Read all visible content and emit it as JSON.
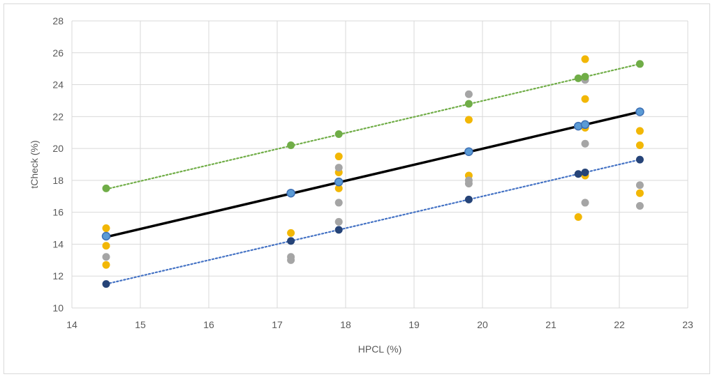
{
  "chart_data": {
    "type": "scatter",
    "title": "",
    "xlabel": "HPCL (%)",
    "ylabel": "tCheck (%)",
    "xlim": [
      14,
      23
    ],
    "ylim": [
      10,
      28
    ],
    "x_ticks": [
      14,
      15,
      16,
      17,
      18,
      19,
      20,
      21,
      22,
      23
    ],
    "y_ticks": [
      10,
      12,
      14,
      16,
      18,
      20,
      22,
      24,
      26,
      28
    ],
    "grid": true,
    "legend": "none",
    "series": [
      {
        "color": "#f2b705",
        "points": [
          [
            14.5,
            15.0
          ],
          [
            14.5,
            13.9
          ],
          [
            14.5,
            12.7
          ],
          [
            17.2,
            14.7
          ],
          [
            17.9,
            19.5
          ],
          [
            17.9,
            18.5
          ],
          [
            17.9,
            17.5
          ],
          [
            19.8,
            21.8
          ],
          [
            19.8,
            18.3
          ],
          [
            21.4,
            15.7
          ],
          [
            21.5,
            25.6
          ],
          [
            21.5,
            23.1
          ],
          [
            21.5,
            21.3
          ],
          [
            21.5,
            18.3
          ],
          [
            22.3,
            21.1
          ],
          [
            22.3,
            20.2
          ],
          [
            22.3,
            17.2
          ]
        ]
      },
      {
        "color": "#a5a5a5",
        "points": [
          [
            14.5,
            13.2
          ],
          [
            17.2,
            13.2
          ],
          [
            17.2,
            13.0
          ],
          [
            17.9,
            18.8
          ],
          [
            17.9,
            16.6
          ],
          [
            17.9,
            15.4
          ],
          [
            19.8,
            23.4
          ],
          [
            19.8,
            18.0
          ],
          [
            19.8,
            17.8
          ],
          [
            21.5,
            24.3
          ],
          [
            21.5,
            20.3
          ],
          [
            21.5,
            16.6
          ],
          [
            22.3,
            17.7
          ],
          [
            22.3,
            16.4
          ]
        ]
      },
      {
        "color": "#70ad47",
        "points": [
          [
            14.5,
            17.5
          ],
          [
            17.2,
            20.2
          ],
          [
            17.9,
            20.9
          ],
          [
            19.8,
            22.8
          ],
          [
            21.4,
            24.4
          ],
          [
            21.5,
            24.5
          ],
          [
            22.3,
            25.3
          ]
        ],
        "trendline": {
          "x": [
            14.5,
            22.3
          ],
          "y": [
            17.45,
            25.3
          ],
          "style": "dotted"
        }
      },
      {
        "color": "#5b9bd5",
        "stroke": "#3d6fb5",
        "points": [
          [
            14.5,
            14.5
          ],
          [
            17.2,
            17.2
          ],
          [
            17.9,
            17.9
          ],
          [
            19.8,
            19.8
          ],
          [
            21.4,
            21.4
          ],
          [
            21.5,
            21.5
          ],
          [
            22.3,
            22.3
          ]
        ],
        "trendline": {
          "x": [
            14.5,
            22.3
          ],
          "y": [
            14.45,
            22.3
          ],
          "style": "solid",
          "color": "#000000"
        }
      },
      {
        "color": "#264478",
        "points": [
          [
            14.5,
            11.5
          ],
          [
            17.2,
            14.2
          ],
          [
            17.9,
            14.9
          ],
          [
            19.8,
            16.8
          ],
          [
            21.4,
            18.4
          ],
          [
            21.5,
            18.5
          ],
          [
            22.3,
            19.3
          ]
        ],
        "trendline": {
          "x": [
            14.5,
            22.3
          ],
          "y": [
            11.5,
            19.3
          ],
          "style": "dotted",
          "color": "#4472c4"
        }
      }
    ]
  }
}
